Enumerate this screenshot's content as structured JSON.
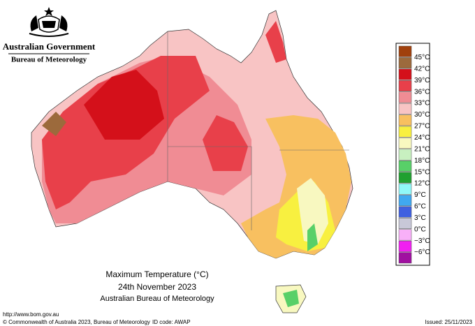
{
  "header": {
    "agency": "Australian Government",
    "bureau": "Bureau of Meteorology"
  },
  "title": {
    "line1": "Maximum Temperature (°C)",
    "line2": "24th November 2023",
    "line3": "Australian Bureau of Meteorology"
  },
  "legend": [
    {
      "label": "45°C",
      "color": "#a0400c"
    },
    {
      "label": "42°C",
      "color": "#9c6a3c"
    },
    {
      "label": "39°C",
      "color": "#d4101a"
    },
    {
      "label": "36°C",
      "color": "#e8404a"
    },
    {
      "label": "33°C",
      "color": "#f08c94"
    },
    {
      "label": "30°C",
      "color": "#f8c4c4"
    },
    {
      "label": "27°C",
      "color": "#f8c060"
    },
    {
      "label": "24°C",
      "color": "#f8f040"
    },
    {
      "label": "21°C",
      "color": "#f8f8c0"
    },
    {
      "label": "18°C",
      "color": "#c8f0c0"
    },
    {
      "label": "15°C",
      "color": "#58d068"
    },
    {
      "label": "12°C",
      "color": "#20a030"
    },
    {
      "label": "9°C",
      "color": "#90f8f8"
    },
    {
      "label": "6°C",
      "color": "#40a8f0"
    },
    {
      "label": "3°C",
      "color": "#4060e0"
    },
    {
      "label": "0°C",
      "color": "#c8c8d8"
    },
    {
      "label": "−3°C",
      "color": "#f8b0f8"
    },
    {
      "label": "−6°C",
      "color": "#f020f0"
    },
    {
      "label": "",
      "color": "#a010a0"
    }
  ],
  "footer": {
    "url": "http://www.bom.gov.au",
    "copyright": "© Commonwealth of Australia 2023, Bureau of Meteorology",
    "id_code": "ID code: AWAP",
    "issued": "Issued: 25/11/2023"
  }
}
